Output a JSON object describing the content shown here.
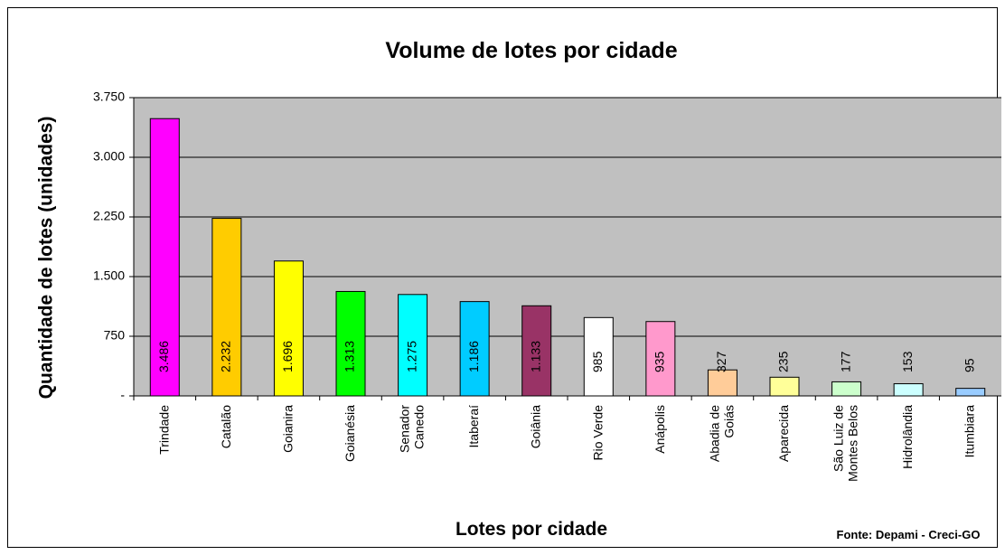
{
  "chart_data": {
    "type": "bar",
    "title": "Volume de lotes por cidade",
    "x_label": "Lotes por cidade",
    "y_label": "Quantidade de lotes (unidades)",
    "source": "Fonte: Depami - Creci-GO",
    "categories": [
      "Trindade",
      "Catalão",
      "Goianira",
      "Goianésia",
      "Senador\nCanedo",
      "Itaberaí",
      "Goiânia",
      "Rio Verde",
      "Anápolis",
      "Abadia de\nGoiás",
      "Aparecida",
      "São Luiz de\nMontes Belos",
      "Hidrolândia",
      "Itumbiara"
    ],
    "values": [
      3486,
      2232,
      1696,
      1313,
      1275,
      1186,
      1133,
      985,
      935,
      327,
      235,
      177,
      153,
      95
    ],
    "value_labels": [
      "3.486",
      "2.232",
      "1.696",
      "1.313",
      "1.275",
      "1.186",
      "1.133",
      "985",
      "935",
      "327",
      "235",
      "177",
      "153",
      "95"
    ],
    "colors": [
      "#ff00ff",
      "#ffcc00",
      "#ffff00",
      "#00ff00",
      "#00ffff",
      "#00ccff",
      "#993366",
      "#ffffff",
      "#ff99cc",
      "#ffcc99",
      "#ffff99",
      "#ccffcc",
      "#ccffff",
      "#99ccff"
    ],
    "ylim": [
      0,
      3750
    ],
    "yticks": [
      {
        "value": 0,
        "label": "-"
      },
      750,
      {
        "value": 1500,
        "label": "1.500"
      },
      {
        "value": 2250,
        "label": "2.250"
      },
      {
        "value": 3000,
        "label": "3.000"
      },
      {
        "value": 3750,
        "label": "3.750"
      }
    ],
    "grid": true
  }
}
